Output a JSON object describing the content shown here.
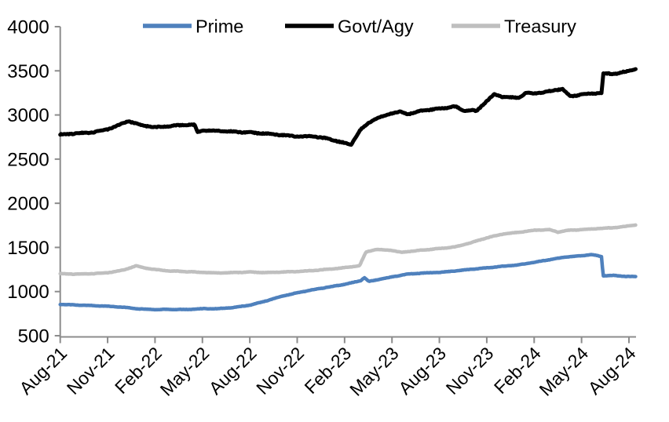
{
  "chart_data": {
    "type": "line",
    "title": "",
    "xlabel": "",
    "ylabel": "",
    "grid": "off",
    "legend_position": "top",
    "ylim": [
      500,
      4000
    ],
    "y_ticks": [
      4000,
      3500,
      3000,
      2500,
      2000,
      1500,
      1000,
      500
    ],
    "x_tick_labels": [
      "Aug-21",
      "Nov-21",
      "Feb-22",
      "May-22",
      "Aug-22",
      "Nov-22",
      "Feb-23",
      "May-23",
      "Aug-23",
      "Nov-23",
      "Feb-24",
      "May-24",
      "Aug-24"
    ],
    "x_keypoint_unit": "months since Aug-2021 (0 = Aug-21, 3 = Nov-21, ... 36 = Aug-24)",
    "x_range_months": [
      0,
      36.45
    ],
    "series": [
      {
        "name": "Prime",
        "color": "#4f81bd",
        "points": [
          [
            0,
            855
          ],
          [
            1,
            848
          ],
          [
            2,
            841
          ],
          [
            3,
            834
          ],
          [
            4,
            822
          ],
          [
            5,
            804
          ],
          [
            6,
            796
          ],
          [
            7,
            798
          ],
          [
            8,
            797
          ],
          [
            9,
            806
          ],
          [
            10,
            806
          ],
          [
            11,
            821
          ],
          [
            12,
            846
          ],
          [
            13,
            892
          ],
          [
            14,
            946
          ],
          [
            15,
            986
          ],
          [
            16,
            1021
          ],
          [
            17,
            1051
          ],
          [
            18,
            1082
          ],
          [
            19,
            1122
          ],
          [
            19.25,
            1157
          ],
          [
            19.55,
            1114
          ],
          [
            20,
            1131
          ],
          [
            21,
            1166
          ],
          [
            22,
            1198
          ],
          [
            23,
            1210
          ],
          [
            24,
            1217
          ],
          [
            25,
            1233
          ],
          [
            26,
            1252
          ],
          [
            27,
            1269
          ],
          [
            28,
            1286
          ],
          [
            29,
            1302
          ],
          [
            30,
            1332
          ],
          [
            31,
            1362
          ],
          [
            32,
            1391
          ],
          [
            33,
            1406
          ],
          [
            33.6,
            1419
          ],
          [
            34.27,
            1397
          ],
          [
            34.36,
            1179
          ],
          [
            35,
            1183
          ],
          [
            35.8,
            1172
          ],
          [
            36.45,
            1168
          ]
        ]
      },
      {
        "name": "Govt/Agy",
        "color": "#000000",
        "points": [
          [
            0,
            2778
          ],
          [
            1,
            2791
          ],
          [
            2,
            2801
          ],
          [
            3,
            2838
          ],
          [
            4,
            2906
          ],
          [
            4.3,
            2931
          ],
          [
            5,
            2891
          ],
          [
            6,
            2859
          ],
          [
            7,
            2876
          ],
          [
            8,
            2889
          ],
          [
            8.5,
            2886
          ],
          [
            8.7,
            2809
          ],
          [
            9,
            2823
          ],
          [
            10,
            2821
          ],
          [
            11,
            2809
          ],
          [
            12,
            2801
          ],
          [
            13,
            2789
          ],
          [
            14,
            2773
          ],
          [
            15,
            2756
          ],
          [
            16,
            2759
          ],
          [
            17,
            2729
          ],
          [
            18,
            2682
          ],
          [
            18.4,
            2663
          ],
          [
            19,
            2831
          ],
          [
            19.5,
            2906
          ],
          [
            20,
            2959
          ],
          [
            21,
            3021
          ],
          [
            21.5,
            3036
          ],
          [
            22,
            3009
          ],
          [
            23,
            3053
          ],
          [
            24,
            3071
          ],
          [
            25,
            3097
          ],
          [
            25.6,
            3044
          ],
          [
            26,
            3056
          ],
          [
            26.35,
            3041
          ],
          [
            27,
            3161
          ],
          [
            27.5,
            3234
          ],
          [
            28,
            3206
          ],
          [
            29,
            3192
          ],
          [
            29.5,
            3254
          ],
          [
            30,
            3241
          ],
          [
            31,
            3269
          ],
          [
            31.8,
            3297
          ],
          [
            32.3,
            3206
          ],
          [
            33,
            3233
          ],
          [
            34,
            3247
          ],
          [
            34.28,
            3251
          ],
          [
            34.36,
            3469
          ],
          [
            35,
            3464
          ],
          [
            35.5,
            3481
          ],
          [
            36,
            3496
          ],
          [
            36.45,
            3524
          ]
        ]
      },
      {
        "name": "Treasury",
        "color": "#bfbfbf",
        "points": [
          [
            0,
            1203
          ],
          [
            1,
            1197
          ],
          [
            2,
            1202
          ],
          [
            3,
            1213
          ],
          [
            4,
            1243
          ],
          [
            4.8,
            1291
          ],
          [
            5.5,
            1263
          ],
          [
            6,
            1249
          ],
          [
            7,
            1233
          ],
          [
            8,
            1226
          ],
          [
            9,
            1217
          ],
          [
            10,
            1211
          ],
          [
            11,
            1215
          ],
          [
            12,
            1221
          ],
          [
            13,
            1215
          ],
          [
            14,
            1221
          ],
          [
            15,
            1227
          ],
          [
            16,
            1238
          ],
          [
            17,
            1253
          ],
          [
            18,
            1271
          ],
          [
            18.95,
            1293
          ],
          [
            19.35,
            1447
          ],
          [
            20,
            1477
          ],
          [
            21,
            1467
          ],
          [
            21.6,
            1443
          ],
          [
            22,
            1453
          ],
          [
            23,
            1471
          ],
          [
            24,
            1487
          ],
          [
            25,
            1506
          ],
          [
            26,
            1553
          ],
          [
            27,
            1609
          ],
          [
            28,
            1651
          ],
          [
            29,
            1671
          ],
          [
            30,
            1694
          ],
          [
            31,
            1701
          ],
          [
            31.5,
            1673
          ],
          [
            32,
            1691
          ],
          [
            33,
            1701
          ],
          [
            34,
            1713
          ],
          [
            35,
            1723
          ],
          [
            36,
            1743
          ],
          [
            36.45,
            1756
          ]
        ]
      }
    ]
  },
  "colors": {
    "axis": "#8c8c8c",
    "tick_label": "#000000",
    "background": "#ffffff"
  }
}
